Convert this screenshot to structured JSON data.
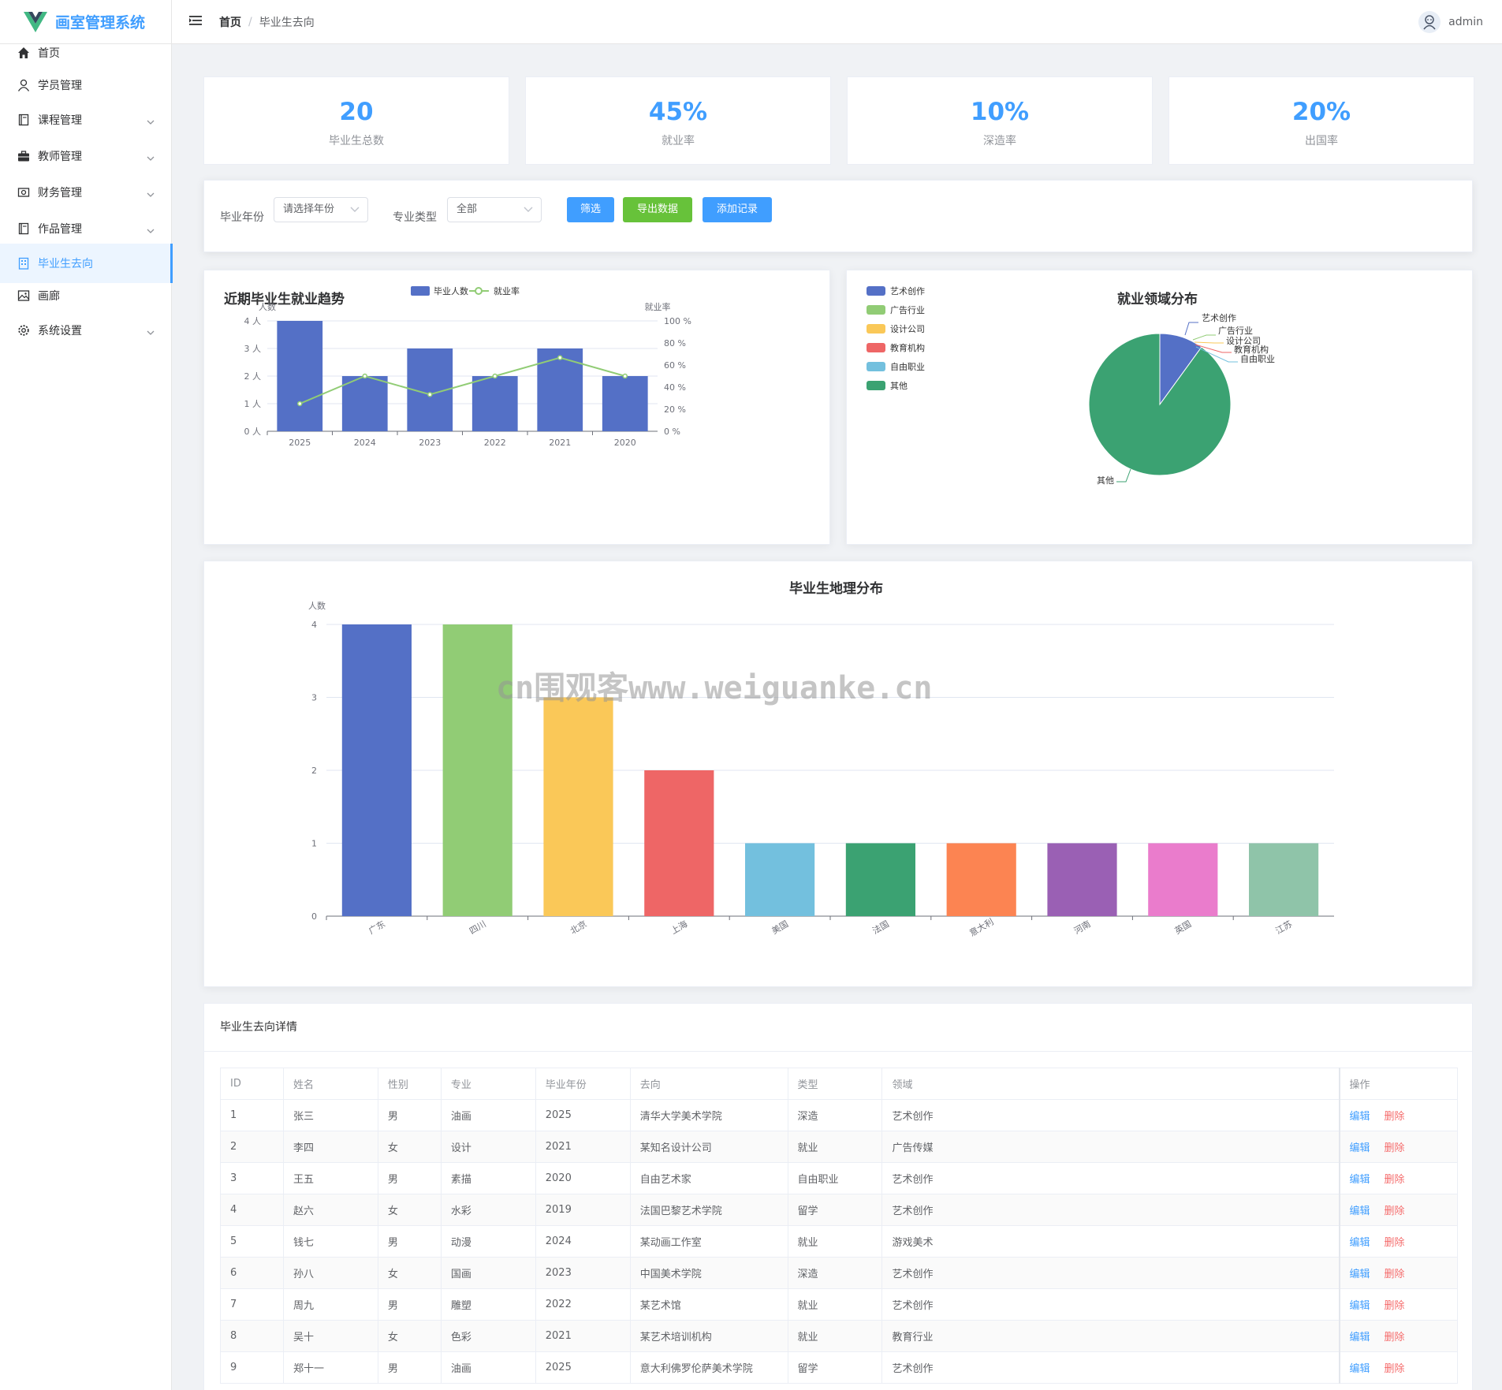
{
  "app": {
    "title": "画室管理系统"
  },
  "sidebar": {
    "items": [
      {
        "label": "首页",
        "icon": "home-icon",
        "expandable": false,
        "active": false
      },
      {
        "label": "学员管理",
        "icon": "user-icon",
        "expandable": false,
        "active": false
      },
      {
        "label": "课程管理",
        "icon": "notebook-icon",
        "expandable": true,
        "active": false
      },
      {
        "label": "教师管理",
        "icon": "briefcase-icon",
        "expandable": true,
        "active": false
      },
      {
        "label": "财务管理",
        "icon": "money-icon",
        "expandable": true,
        "active": false
      },
      {
        "label": "作品管理",
        "icon": "notebook-icon",
        "expandable": true,
        "active": false
      },
      {
        "label": "毕业生去向",
        "icon": "office-building-icon",
        "expandable": false,
        "active": true
      },
      {
        "label": "画廊",
        "icon": "picture-icon",
        "expandable": false,
        "active": false
      },
      {
        "label": "系统设置",
        "icon": "setting-icon",
        "expandable": true,
        "active": false
      }
    ]
  },
  "header": {
    "breadcrumb_home": "首页",
    "breadcrumb_sep": "/",
    "breadcrumb_current": "毕业生去向",
    "username": "admin"
  },
  "stats": [
    {
      "value": "20",
      "label": "毕业生总数"
    },
    {
      "value": "45%",
      "label": "就业率"
    },
    {
      "value": "10%",
      "label": "深造率"
    },
    {
      "value": "20%",
      "label": "出国率"
    }
  ],
  "filter": {
    "year_label": "毕业年份",
    "year_placeholder": "请选择年份",
    "major_label": "专业类型",
    "major_value": "全部",
    "btn_filter": "筛选",
    "btn_export": "导出数据",
    "btn_add": "添加记录"
  },
  "colors": {
    "accent": "#409eff",
    "success": "#67c23a",
    "danger": "#f56c6c",
    "palette": [
      "#5470c6",
      "#91cc75",
      "#fac858",
      "#ee6666",
      "#73c0de",
      "#3ba272",
      "#fc8452",
      "#9a60b4",
      "#ea7ccc",
      "#8fc4a9"
    ]
  },
  "chart_data": [
    {
      "type": "bar",
      "title": "近期毕业生就业趋势",
      "categories": [
        "2025",
        "2024",
        "2023",
        "2022",
        "2021",
        "2020"
      ],
      "series": [
        {
          "name": "毕业人数",
          "type": "bar",
          "values": [
            4,
            2,
            3,
            2,
            3,
            2
          ]
        },
        {
          "name": "就业率",
          "type": "line",
          "values": [
            25,
            50,
            33.3,
            50,
            66.7,
            50
          ]
        }
      ],
      "ylabel": "人数",
      "y2label": "就业率",
      "ylim": [
        0,
        4
      ],
      "y2lim": [
        0,
        100
      ],
      "yticks": [
        "0 人",
        "1 人",
        "2 人",
        "3 人",
        "4 人"
      ],
      "y2ticks": [
        "0 %",
        "20 %",
        "40 %",
        "60 %",
        "80 %",
        "100 %"
      ],
      "legend": "top-center",
      "grid": true
    },
    {
      "type": "pie",
      "title": "就业领域分布",
      "labels": [
        "艺术创作",
        "广告行业",
        "设计公司",
        "教育机构",
        "自由职业",
        "其他"
      ],
      "values": [
        2,
        0,
        0,
        0,
        0,
        18
      ],
      "legend": "top-left"
    },
    {
      "type": "bar",
      "title": "毕业生地理分布",
      "ylabel": "人数",
      "categories": [
        "广东",
        "四川",
        "北京",
        "上海",
        "美国",
        "法国",
        "意大利",
        "河南",
        "英国",
        "江苏"
      ],
      "values": [
        4,
        4,
        3,
        2,
        1,
        1,
        1,
        1,
        1,
        1
      ],
      "yticks": [
        "0",
        "1",
        "2",
        "3",
        "4"
      ],
      "ylim": [
        0,
        4
      ],
      "grid": true
    }
  ],
  "table": {
    "title": "毕业生去向详情",
    "headers": [
      "ID",
      "姓名",
      "性别",
      "专业",
      "毕业年份",
      "去向",
      "类型",
      "领域",
      "操作"
    ],
    "edit_label": "编辑",
    "delete_label": "删除",
    "rows": [
      [
        "1",
        "张三",
        "男",
        "油画",
        "2025",
        "清华大学美术学院",
        "深造",
        "艺术创作"
      ],
      [
        "2",
        "李四",
        "女",
        "设计",
        "2021",
        "某知名设计公司",
        "就业",
        "广告传媒"
      ],
      [
        "3",
        "王五",
        "男",
        "素描",
        "2020",
        "自由艺术家",
        "自由职业",
        "艺术创作"
      ],
      [
        "4",
        "赵六",
        "女",
        "水彩",
        "2019",
        "法国巴黎艺术学院",
        "留学",
        "艺术创作"
      ],
      [
        "5",
        "钱七",
        "男",
        "动漫",
        "2024",
        "某动画工作室",
        "就业",
        "游戏美术"
      ],
      [
        "6",
        "孙八",
        "女",
        "国画",
        "2023",
        "中国美术学院",
        "深造",
        "艺术创作"
      ],
      [
        "7",
        "周九",
        "男",
        "雕塑",
        "2022",
        "某艺术馆",
        "就业",
        "艺术创作"
      ],
      [
        "8",
        "吴十",
        "女",
        "色彩",
        "2021",
        "某艺术培训机构",
        "就业",
        "教育行业"
      ],
      [
        "9",
        "郑十一",
        "男",
        "油画",
        "2025",
        "意大利佛罗伦萨美术学院",
        "留学",
        "艺术创作"
      ]
    ]
  },
  "watermark": "cn围观客www.weiguanke.cn"
}
